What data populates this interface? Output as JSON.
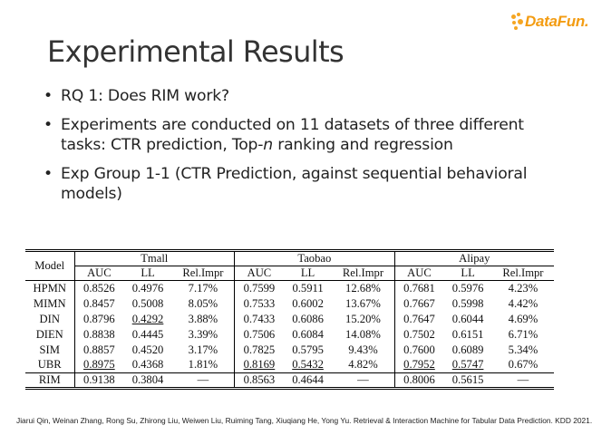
{
  "logo": {
    "text": "DataFun."
  },
  "title": "Experimental Results",
  "bullets": [
    {
      "text": "RQ 1: Does RIM work?"
    },
    {
      "prefix": "Experiments are conducted on 11 datasets of three different tasks: CTR prediction, Top-",
      "italic": "n",
      "suffix": " ranking and regression"
    },
    {
      "text": "Exp Group 1-1 (CTR Prediction, against sequential behavioral models)"
    }
  ],
  "table": {
    "model_header": "Model",
    "groups": [
      "Tmall",
      "Taobao",
      "Alipay"
    ],
    "sub_headers": [
      "AUC",
      "LL",
      "Rel.Impr"
    ],
    "rows": [
      {
        "model": "HPMN",
        "cells": [
          "0.8526",
          "0.4976",
          "7.17%",
          "0.7599",
          "0.5911",
          "12.68%",
          "0.7681",
          "0.5976",
          "4.23%"
        ]
      },
      {
        "model": "MIMN",
        "cells": [
          "0.8457",
          "0.5008",
          "8.05%",
          "0.7533",
          "0.6002",
          "13.67%",
          "0.7667",
          "0.5998",
          "4.42%"
        ]
      },
      {
        "model": "DIN",
        "cells": [
          "0.8796",
          "0.4292",
          "3.88%",
          "0.7433",
          "0.6086",
          "15.20%",
          "0.7647",
          "0.6044",
          "4.69%"
        ]
      },
      {
        "model": "DIEN",
        "cells": [
          "0.8838",
          "0.4445",
          "3.39%",
          "0.7506",
          "0.6084",
          "14.08%",
          "0.7502",
          "0.6151",
          "6.71%"
        ]
      },
      {
        "model": "SIM",
        "cells": [
          "0.8857",
          "0.4520",
          "3.17%",
          "0.7825",
          "0.5795",
          "9.43%",
          "0.7600",
          "0.6089",
          "5.34%"
        ]
      },
      {
        "model": "UBR",
        "cells": [
          "0.8975",
          "0.4368",
          "1.81%",
          "0.8169",
          "0.5432",
          "4.82%",
          "0.7952",
          "0.5747",
          "0.67%"
        ]
      },
      {
        "model": "RIM",
        "cells": [
          "0.9138",
          "0.3804",
          "—",
          "0.8563",
          "0.4644",
          "—",
          "0.8006",
          "0.5615",
          "—"
        ]
      }
    ]
  },
  "citation": "Jiarui Qin, Weinan Zhang, Rong Su, Zhirong Liu, Weiwen Liu, Ruiming Tang, Xiuqiang He, Yong Yu. Retrieval & Interaction Machine for Tabular Data Prediction. KDD 2021."
}
